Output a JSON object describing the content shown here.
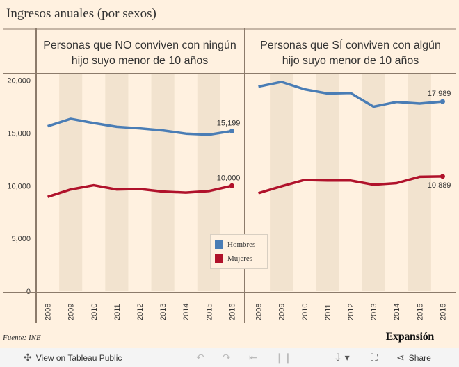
{
  "title": "Ingresos anuales (por sexos)",
  "source": "Fuente:  INE",
  "brand": "Expansión",
  "colors": {
    "hombres": "#4a7db5",
    "mujeres": "#b0122b",
    "axis": "#8c7b6b",
    "band": "#f2e3cf"
  },
  "legend": {
    "items": [
      {
        "label": "Hombres",
        "color": "#4a7db5"
      },
      {
        "label": "Mujeres",
        "color": "#b0122b"
      }
    ]
  },
  "toolbar": {
    "view_label": "View on Tableau Public",
    "share_label": "Share",
    "icons": [
      "tableau-logo-icon",
      "undo-icon",
      "redo-icon",
      "revert-icon",
      "pause-icon",
      "download-icon",
      "fullscreen-icon",
      "share-icon"
    ]
  },
  "chart_data": [
    {
      "type": "line",
      "title": "Personas que NO conviven con ningún hijo suyo menor de 10 años",
      "x": [
        "2008",
        "2009",
        "2010",
        "2011",
        "2012",
        "2013",
        "2014",
        "2015",
        "2016"
      ],
      "ylim": [
        0,
        20500
      ],
      "yticks": [
        "0",
        "5,000",
        "10,000",
        "15,000",
        "20,000"
      ],
      "ytick_values": [
        0,
        5000,
        10000,
        15000,
        20000
      ],
      "series": [
        {
          "name": "Hombres",
          "values": [
            15650,
            16350,
            15950,
            15600,
            15450,
            15250,
            14950,
            14850,
            15199
          ],
          "end_label": "15,199"
        },
        {
          "name": "Mujeres",
          "values": [
            8950,
            9650,
            10050,
            9650,
            9700,
            9450,
            9350,
            9500,
            10000
          ],
          "end_label": "10,000"
        }
      ]
    },
    {
      "type": "line",
      "title": "Personas que SÍ conviven con algún hijo suyo menor de 10 años",
      "x": [
        "2008",
        "2009",
        "2010",
        "2011",
        "2012",
        "2013",
        "2014",
        "2015",
        "2016"
      ],
      "ylim": [
        0,
        20500
      ],
      "series": [
        {
          "name": "Hombres",
          "values": [
            19400,
            19850,
            19150,
            18750,
            18800,
            17500,
            17950,
            17800,
            17989
          ],
          "end_label": "17,989"
        },
        {
          "name": "Mujeres",
          "values": [
            9300,
            9950,
            10550,
            10500,
            10500,
            10100,
            10250,
            10850,
            10889
          ],
          "end_label": "10,889"
        }
      ]
    }
  ]
}
